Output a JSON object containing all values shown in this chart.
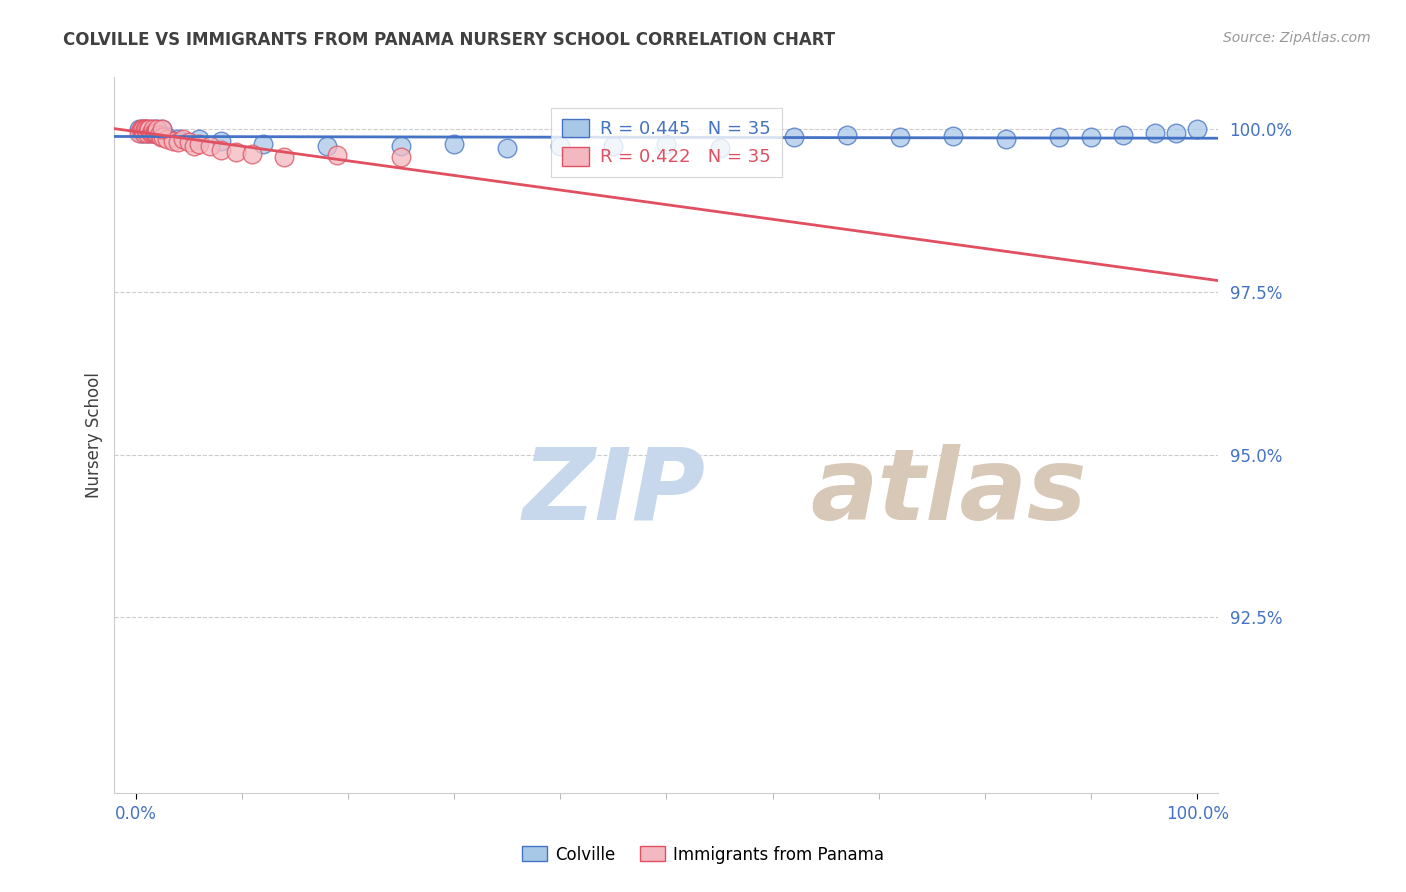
{
  "title": "COLVILLE VS IMMIGRANTS FROM PANAMA NURSERY SCHOOL CORRELATION CHART",
  "source": "Source: ZipAtlas.com",
  "ylabel": "Nursery School",
  "legend_label1": "Colville",
  "legend_label2": "Immigrants from Panama",
  "R1": 0.445,
  "N1": 35,
  "R2": 0.422,
  "N2": 35,
  "color1": "#a8c8e8",
  "color2": "#f4b8c0",
  "trendline1_color": "#4472C4",
  "trendline2_color": "#e05060",
  "title_color": "#404040",
  "axis_label_color": "#404040",
  "tick_label_color": "#4472C4",
  "source_color": "#999999",
  "background_color": "#ffffff",
  "grid_color": "#cccccc",
  "watermark_zip_color": "#c8d8ec",
  "watermark_atlas_color": "#d8c8b8",
  "xlim": [
    -0.02,
    1.02
  ],
  "ylim": [
    0.898,
    1.008
  ],
  "yticks": [
    0.925,
    0.95,
    0.975,
    1.0
  ],
  "ytick_labels": [
    "92.5%",
    "95.0%",
    "97.5%",
    "100.0%"
  ],
  "xticks": [
    0.0,
    1.0
  ],
  "xtick_labels": [
    "0.0%",
    "100.0%"
  ],
  "colville_x": [
    0.003,
    0.005,
    0.007,
    0.009,
    0.011,
    0.013,
    0.015,
    0.017,
    0.019,
    0.022,
    0.025,
    0.03,
    0.04,
    0.06,
    0.08,
    0.12,
    0.18,
    0.25,
    0.35,
    0.45,
    0.55,
    0.62,
    0.67,
    0.72,
    0.77,
    0.82,
    0.87,
    0.9,
    0.93,
    0.96,
    0.98,
    1.0,
    0.5,
    0.4,
    0.3
  ],
  "colville_y": [
    1.0,
    0.9995,
    0.9995,
    1.0,
    0.9995,
    0.9995,
    1.0,
    0.9995,
    1.0,
    0.9995,
    1.0,
    0.9988,
    0.9985,
    0.9985,
    0.9982,
    0.9978,
    0.9975,
    0.9975,
    0.9972,
    0.9975,
    0.9972,
    0.9988,
    0.9992,
    0.9988,
    0.999,
    0.9985,
    0.9988,
    0.9988,
    0.9992,
    0.9995,
    0.9995,
    1.0,
    0.9978,
    0.9975,
    0.9978
  ],
  "panama_x": [
    0.003,
    0.005,
    0.006,
    0.007,
    0.008,
    0.009,
    0.01,
    0.011,
    0.012,
    0.013,
    0.014,
    0.015,
    0.016,
    0.017,
    0.018,
    0.019,
    0.02,
    0.022,
    0.024,
    0.026,
    0.03,
    0.035,
    0.04,
    0.045,
    0.05,
    0.055,
    0.06,
    0.07,
    0.08,
    0.095,
    0.11,
    0.14,
    0.19,
    0.25,
    0.025
  ],
  "panama_y": [
    0.9995,
    1.0,
    1.0,
    1.0,
    0.9995,
    1.0,
    1.0,
    0.9995,
    1.0,
    1.0,
    0.9995,
    0.9995,
    1.0,
    0.9995,
    0.9995,
    0.9995,
    1.0,
    0.9992,
    0.9988,
    0.9988,
    0.9985,
    0.9982,
    0.998,
    0.9985,
    0.998,
    0.9975,
    0.9978,
    0.9975,
    0.9968,
    0.9965,
    0.9962,
    0.9958,
    0.996,
    0.9958,
    1.0
  ]
}
